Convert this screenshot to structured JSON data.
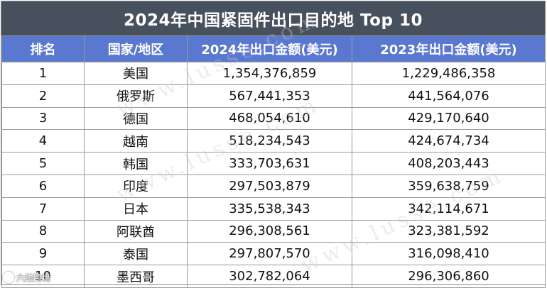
{
  "title": "2024年中国紧固件出口目的地 Top 10",
  "columns": [
    "排名",
    "国家/地区",
    "2024年出口金额(美元)",
    "2023年出口金额(美元)"
  ],
  "rows": [
    {
      "rank": "1",
      "country": "美国",
      "y2024": "1,354,376,859",
      "y2023": "1,229,486,358"
    },
    {
      "rank": "2",
      "country": "俄罗斯",
      "y2024": "567,441,353",
      "y2023": "441,564,076"
    },
    {
      "rank": "3",
      "country": "德国",
      "y2024": "468,054,610",
      "y2023": "429,170,640"
    },
    {
      "rank": "4",
      "country": "越南",
      "y2024": "518,234,543",
      "y2023": "424,674,734"
    },
    {
      "rank": "5",
      "country": "韩国",
      "y2024": "333,703,631",
      "y2023": "408,203,443"
    },
    {
      "rank": "6",
      "country": "印度",
      "y2024": "297,503,879",
      "y2023": "359,638,759"
    },
    {
      "rank": "7",
      "country": "日本",
      "y2024": "335,538,343",
      "y2023": "342,114,671"
    },
    {
      "rank": "8",
      "country": "阿联酋",
      "y2024": "296,308,561",
      "y2023": "323,381,592"
    },
    {
      "rank": "9",
      "country": "泰国",
      "y2024": "297,807,570",
      "y2023": "316,098,410"
    },
    {
      "rank": "10",
      "country": "墨西哥",
      "y2024": "302,782,064",
      "y2023": "296,306,860"
    }
  ],
  "watermark": "www.lusse.com",
  "logo_text": "六维跨境",
  "colors": {
    "title_bg": "#47515e",
    "header_bg": "#5a78d0",
    "border": "#9a9a9a"
  }
}
